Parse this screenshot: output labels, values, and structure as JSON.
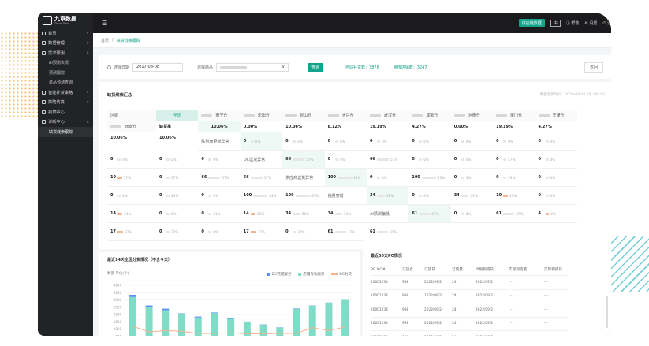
{
  "brand": {
    "name": "九章数据",
    "sub": "Think Data"
  },
  "topbar": {
    "action_button": "供应链数据",
    "lang": "中",
    "help": "帮助",
    "settings": "设置",
    "user": "退"
  },
  "sidebar": {
    "items": [
      {
        "label": "首页",
        "chev": "∨",
        "type": "item"
      },
      {
        "label": "数据管理",
        "chev": "∨",
        "type": "item"
      },
      {
        "label": "需求预测",
        "chev": "∧",
        "type": "item"
      },
      {
        "label": "AI预测表现",
        "type": "sub"
      },
      {
        "label": "预测跟踪",
        "type": "sub"
      },
      {
        "label": "单品预测查询",
        "type": "sub"
      },
      {
        "label": "智能补货策略",
        "chev": "∨",
        "type": "item"
      },
      {
        "label": "策略仿真",
        "chev": "∨",
        "type": "item"
      },
      {
        "label": "报表中心",
        "chev": "",
        "type": "item"
      },
      {
        "label": "诊断中心",
        "chev": "∧",
        "type": "item"
      },
      {
        "label": "缺货线索跟踪",
        "type": "sub",
        "active": true
      }
    ]
  },
  "breadcrumb": {
    "home": "首页",
    "sep": "/",
    "current": "缺货线索跟踪"
  },
  "filter": {
    "date_label": "选择日期",
    "date_value": "2017-08-08",
    "product_label": "选择商品",
    "product_chevron": "∨",
    "query_button": "查询",
    "stat1": "自动补货数：3876",
    "stat2": "考核店铺数：3247",
    "back_button": "返回"
  },
  "summary": {
    "title": "缺货线索汇总",
    "updated": "数据更新时间：2020-09-01 18 :00 :00",
    "columns": [
      "区域",
      "全国",
      "南宁仓",
      "沈阳仓",
      "昆山仓",
      "大兴仓",
      "武汉仓",
      "成都仓",
      "泪南仓",
      "厦门仓",
      "天津仓",
      "西安仓"
    ],
    "rate_label": "缺货率",
    "rates": [
      "10.06%",
      "0.00%",
      "10.06%",
      "8.12%",
      "19.19%",
      "4.27%",
      "0.00%",
      "19.19%",
      "4.27%",
      "10.06%",
      "10.06%"
    ],
    "rows": [
      {
        "label": "陈列面更新异常",
        "cells": [
          [
            "0",
            "0%"
          ],
          [
            "0",
            "0%"
          ],
          [
            "0",
            "0%"
          ],
          [
            "0",
            "0%"
          ],
          [
            "0",
            "0%"
          ],
          [
            "0",
            "0%"
          ],
          [
            "0",
            "0%"
          ],
          [
            "0",
            "0%"
          ],
          [
            "0",
            "0%"
          ],
          [
            "0",
            "0%"
          ],
          [
            "0",
            "0%"
          ]
        ]
      },
      {
        "label": "DC送货异常",
        "cells": [
          [
            "66",
            "57%"
          ],
          [
            "0",
            "0%"
          ],
          [
            "66",
            "57%"
          ],
          [
            "0",
            "0%"
          ],
          [
            "0",
            "0%"
          ],
          [
            "0",
            "57%"
          ],
          [
            "0",
            "0%"
          ],
          [
            "10",
            "57%"
          ],
          [
            "0",
            "57%"
          ],
          [
            "66",
            "57%"
          ],
          [
            "66",
            "57%"
          ]
        ]
      },
      {
        "label": "供应商送货异常",
        "cells": [
          [
            "100",
            "43%"
          ],
          [
            "0",
            "0%"
          ],
          [
            "100",
            "43%"
          ],
          [
            "0",
            "0%"
          ],
          [
            "0",
            "43%"
          ],
          [
            "0",
            "0%"
          ],
          [
            "0",
            "0%"
          ],
          [
            "0",
            "43%"
          ],
          [
            "0",
            "0%"
          ],
          [
            "100",
            "43%"
          ],
          [
            "100",
            "43%"
          ]
        ]
      },
      {
        "label": "销量突增",
        "cells": [
          [
            "34",
            "51%"
          ],
          [
            "0",
            "0%"
          ],
          [
            "34",
            "51%"
          ],
          [
            "10",
            "10%"
          ],
          [
            "0",
            "0%"
          ],
          [
            "14",
            "51%"
          ],
          [
            "0",
            "0%"
          ],
          [
            "0",
            "51%"
          ],
          [
            "14",
            "51%"
          ],
          [
            "34",
            "51%"
          ],
          [
            "34",
            "51%"
          ]
        ]
      },
      {
        "label": "AI预测偏低",
        "cells": [
          [
            "61",
            "37%"
          ],
          [
            "0",
            "0%"
          ],
          [
            "61",
            "37%"
          ],
          [
            "4",
            "0%"
          ],
          [
            "17",
            "37%"
          ],
          [
            "0",
            "37%"
          ],
          [
            "0",
            "0%"
          ],
          [
            "17",
            "37%"
          ],
          [
            "0",
            "37%"
          ],
          [
            "61",
            "37%"
          ],
          [
            "61",
            "37%"
          ]
        ]
      }
    ]
  },
  "chart_data": {
    "type": "bar",
    "title": "最近14天全国分货情况（不含今天）",
    "unit_label": "数量  单位(个)",
    "ylim": [
      0,
      4000
    ],
    "y_ticks": [
      4000,
      3500,
      3000,
      2500,
      2000,
      1500,
      1000,
      500,
      0
    ],
    "categories": [
      "",
      "",
      "",
      "",
      "",
      "",
      "",
      "",
      "",
      "",
      "",
      "",
      "",
      ""
    ],
    "series": [
      {
        "name": "DC完成服务",
        "color": "#5b8ff9",
        "values": [
          150,
          120,
          100,
          80,
          60,
          40,
          30,
          20,
          20,
          20,
          20,
          20,
          20,
          0
        ]
      },
      {
        "name": "店铺有效服务",
        "color": "#7fdcc7",
        "values": [
          3200,
          2500,
          2300,
          2000,
          1800,
          2100,
          1700,
          1500,
          1300,
          1100,
          2400,
          2600,
          2800,
          3000
        ]
      },
      {
        "name": "DC分货",
        "color": "#f7b28c",
        "values": [
          1200,
          800,
          900,
          850,
          700,
          700,
          750,
          680,
          680,
          700,
          700,
          1100,
          900,
          1150
        ]
      }
    ]
  },
  "po": {
    "title": "最近30天PO情况",
    "columns": [
      "PO NO#",
      "订货仓",
      "订货日",
      "订货量",
      "计划到货日",
      "实际到货量",
      "实际到货日"
    ],
    "rows": [
      [
        "20001234",
        "998",
        "2022/09/2",
        "24",
        "2022/09/2",
        "- -",
        "- -"
      ],
      [
        "20001234",
        "998",
        "2022/09/2",
        "24",
        "2022/09/2",
        "- -",
        "- -"
      ],
      [
        "20001234",
        "998",
        "2022/09/2",
        "24",
        "2022/09/2",
        "- -",
        "- -"
      ],
      [
        "20001234",
        "998",
        "2022/09/2",
        "24",
        "2022/09/2",
        "- -",
        "- -"
      ],
      [
        "20001234",
        "998",
        "2022/09/2",
        "24",
        "2022/09/2",
        "- -",
        "- -"
      ],
      [
        "20001234",
        "998",
        "2022/09/2",
        "24",
        "2022/09/2",
        "- -",
        "- -"
      ]
    ]
  }
}
